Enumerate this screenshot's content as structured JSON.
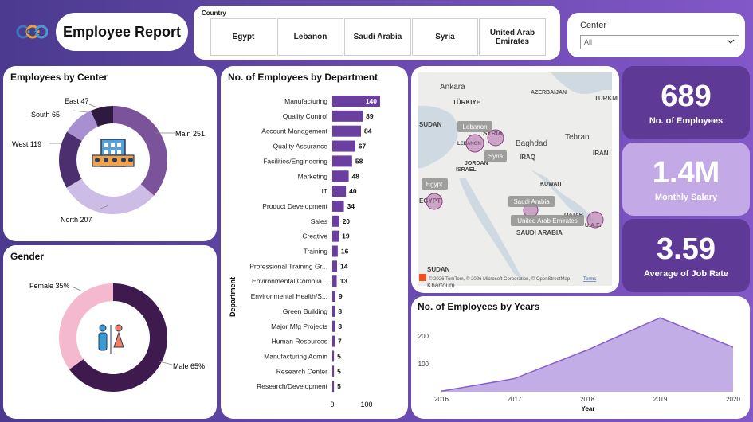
{
  "header": {
    "logo_text": "LOGO",
    "title": "Employee Report"
  },
  "country_slicer": {
    "label": "Country",
    "options": [
      "Egypt",
      "Lebanon",
      "Saudi Arabia",
      "Syria",
      "United Arab Emirates"
    ]
  },
  "center_slicer": {
    "label": "Center",
    "value": "All"
  },
  "employees_by_center": {
    "title": "Employees by Center",
    "slices": [
      {
        "label": "Main 251",
        "value": 251,
        "color": "#7b539b"
      },
      {
        "label": "North 207",
        "value": 207,
        "color": "#cdbde6"
      },
      {
        "label": "West 119",
        "value": 119,
        "color": "#4b2f6e"
      },
      {
        "label": "South 65",
        "value": 65,
        "color": "#a88fd2"
      },
      {
        "label": "East 47",
        "value": 47,
        "color": "#2d1a3e"
      }
    ]
  },
  "gender": {
    "title": "Gender",
    "slices": [
      {
        "label": "Male 65%",
        "value": 65,
        "color": "#3e1a4f"
      },
      {
        "label": "Female 35%",
        "value": 35,
        "color": "#f4b8cf"
      }
    ]
  },
  "dept_chart": {
    "title": "No. of Employees by Department",
    "ylabel": "Department",
    "xticks": [
      "0",
      "100"
    ],
    "bar_color": "#6a3fa0",
    "chart_data": {
      "type": "bar",
      "orientation": "horizontal",
      "title": "No. of Employees by Department",
      "ylabel": "Department",
      "xlim": [
        0,
        140
      ],
      "categories": [
        "Manufacturing",
        "Quality Control",
        "Account Management",
        "Quality Assurance",
        "Facilities/Engineering",
        "Marketing",
        "IT",
        "Product Development",
        "Sales",
        "Creative",
        "Training",
        "Professional Training Gr...",
        "Environmental Complia...",
        "Environmental Health/S...",
        "Green Building",
        "Major Mfg Projects",
        "Human Resources",
        "Manufacturing Admin",
        "Research Center",
        "Research/Development"
      ],
      "values": [
        140,
        89,
        84,
        67,
        58,
        48,
        40,
        34,
        20,
        19,
        16,
        14,
        13,
        9,
        8,
        8,
        7,
        5,
        5,
        5
      ]
    }
  },
  "map": {
    "labels": {
      "ankara": "Ankara",
      "turkiye": "TÜRKIYE",
      "azerbaijan": "AZERBAIJAN",
      "turkm": "TURKM",
      "syria": "SYRIA",
      "lebanon": "LEBANON",
      "tehran": "Tehran",
      "baghdad": "Baghdad",
      "iraq": "IRAQ",
      "iran": "IRAN",
      "jordan": "JORDAN",
      "israel": "ISRAEL",
      "kuwait": "KUWAIT",
      "egypt": "EGYPT",
      "qatar": "QATAR",
      "uae": "U.A.E.",
      "saudi": "SAUDI ARABIA",
      "sudan_top": "SUDAN",
      "sudan": "SUDAN",
      "khartoum": "Khartoum"
    },
    "bubbles": [
      "Lebanon",
      "Syria",
      "Egypt",
      "Saudi Arabia",
      "United Arab Emirates"
    ],
    "attribution": "© 2026 TomTom, © 2026 Microsoft Corporation, © OpenStreetMap",
    "terms": "Terms"
  },
  "kpis": [
    {
      "value": "689",
      "label": "No. of Employees",
      "color": "#5e3a96"
    },
    {
      "value": "1.4M",
      "label": "Monthly Salary",
      "color": "#c3a9e6"
    },
    {
      "value": "3.59",
      "label": "Average of Job Rate",
      "color": "#5e3a96"
    }
  ],
  "years_chart": {
    "title": "No. of Employees by Years",
    "xlabel": "Year",
    "fill_color": "#c3ade6",
    "line_color": "#8a60cc",
    "chart_data": {
      "type": "area",
      "title": "No. of Employees by Years",
      "xlabel": "Year",
      "x": [
        "2016",
        "2017",
        "2018",
        "2019",
        "2020"
      ],
      "values": [
        2,
        47,
        150,
        265,
        160
      ],
      "yticks": [
        100,
        200
      ],
      "ylim": [
        0,
        280
      ]
    }
  }
}
